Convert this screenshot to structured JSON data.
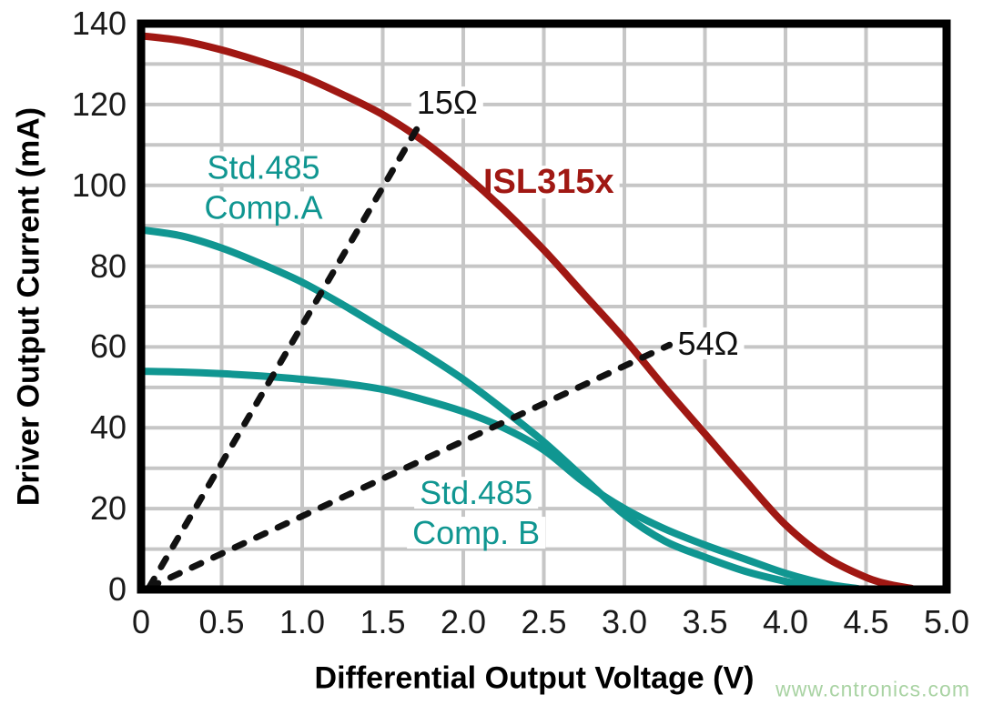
{
  "watermark": {
    "text": "www.cntronics.com",
    "color": "#a9d3a3"
  },
  "chart_data": {
    "type": "line",
    "title": "",
    "xlabel": "Differential Output Voltage (V)",
    "ylabel": "Driver Output Current (mA)",
    "xlim": [
      0,
      5.0
    ],
    "ylim": [
      0,
      140
    ],
    "grid": {
      "on": true,
      "x_step": 0.5,
      "y_step": 10,
      "color": "#c6c6c6"
    },
    "legend_position": "none",
    "x_tick_values": [
      0,
      0.5,
      1.0,
      1.5,
      2.0,
      2.5,
      3.0,
      3.5,
      4.0,
      4.5,
      5.0
    ],
    "x_tick_labels": [
      "0",
      "0.5",
      "1.0",
      "1.5",
      "2.0",
      "2.5",
      "3.0",
      "3.5",
      "4.0",
      "4.5",
      "5.0"
    ],
    "y_tick_values": [
      0,
      20,
      40,
      60,
      80,
      100,
      120,
      140
    ],
    "y_tick_labels": [
      "0",
      "20",
      "40",
      "60",
      "80",
      "100",
      "120",
      "140"
    ],
    "series": [
      {
        "id": "isl315x",
        "name": "ISL315x",
        "color": "#A01813",
        "style": "solid",
        "width": 8,
        "points": [
          [
            0,
            137
          ],
          [
            0.25,
            135.8
          ],
          [
            0.5,
            133.5
          ],
          [
            0.75,
            130.5
          ],
          [
            1.0,
            127
          ],
          [
            1.25,
            122.5
          ],
          [
            1.5,
            117.5
          ],
          [
            1.75,
            111
          ],
          [
            2.0,
            103
          ],
          [
            2.25,
            94
          ],
          [
            2.5,
            84
          ],
          [
            2.75,
            73
          ],
          [
            3.0,
            62
          ],
          [
            3.25,
            50
          ],
          [
            3.5,
            38.5
          ],
          [
            3.75,
            27
          ],
          [
            4.0,
            16
          ],
          [
            4.25,
            8
          ],
          [
            4.5,
            3
          ],
          [
            4.65,
            1.2
          ],
          [
            4.78,
            0.3
          ]
        ]
      },
      {
        "id": "std485-comp-a",
        "name": "Std.485 Comp.A",
        "color": "#109691",
        "style": "solid",
        "width": 8,
        "points": [
          [
            0,
            89
          ],
          [
            0.25,
            87.5
          ],
          [
            0.5,
            84.5
          ],
          [
            0.75,
            80.5
          ],
          [
            1.0,
            76
          ],
          [
            1.25,
            70.5
          ],
          [
            1.5,
            64.5
          ],
          [
            1.75,
            58.5
          ],
          [
            2.0,
            52
          ],
          [
            2.25,
            44.5
          ],
          [
            2.5,
            36.5
          ],
          [
            2.75,
            27.5
          ],
          [
            3.0,
            18.5
          ],
          [
            3.25,
            12
          ],
          [
            3.5,
            8
          ],
          [
            3.75,
            4.5
          ],
          [
            4.0,
            2
          ],
          [
            4.15,
            1
          ],
          [
            4.32,
            0.2
          ]
        ]
      },
      {
        "id": "std485-comp-b",
        "name": "Std.485 Comp. B",
        "color": "#109691",
        "style": "solid",
        "width": 8,
        "points": [
          [
            0,
            54
          ],
          [
            0.25,
            53.8
          ],
          [
            0.5,
            53.4
          ],
          [
            0.75,
            52.8
          ],
          [
            1.0,
            52
          ],
          [
            1.25,
            51
          ],
          [
            1.5,
            49.5
          ],
          [
            1.75,
            47
          ],
          [
            2.0,
            44
          ],
          [
            2.25,
            40
          ],
          [
            2.5,
            34.5
          ],
          [
            2.75,
            26.5
          ],
          [
            3.0,
            20
          ],
          [
            3.25,
            15
          ],
          [
            3.5,
            11
          ],
          [
            3.75,
            7.5
          ],
          [
            4.0,
            4
          ],
          [
            4.25,
            1.4
          ],
          [
            4.45,
            0.2
          ]
        ]
      },
      {
        "id": "load-15ohm",
        "name": "15Ω load line",
        "color": "#111111",
        "style": "dashed",
        "width": 7,
        "dash": "11 15",
        "points": [
          [
            0.05,
            0.5
          ],
          [
            1.72,
            114.5
          ]
        ]
      },
      {
        "id": "load-54ohm",
        "name": "54Ω load line",
        "color": "#111111",
        "style": "dashed",
        "width": 7,
        "dash": "11 15",
        "points": [
          [
            0.05,
            0.5
          ],
          [
            3.28,
            60.5
          ]
        ]
      }
    ],
    "annotations": [
      {
        "id": "label-15ohm",
        "lines": [
          "15Ω"
        ],
        "x": 1.9,
        "y": 120.5,
        "color": "#111111",
        "size": 36,
        "bold": false
      },
      {
        "id": "label-isl315x",
        "lines": [
          "ISL315x"
        ],
        "x": 2.53,
        "y": 100.8,
        "color": "#A01813",
        "size": 38,
        "bold": true
      },
      {
        "id": "label-comp-a",
        "lines": [
          "Std.485",
          "Comp.A"
        ],
        "x": 0.76,
        "y": 99.5,
        "color": "#109691",
        "size": 36,
        "bold": false
      },
      {
        "id": "label-54ohm",
        "lines": [
          "54Ω"
        ],
        "x": 3.52,
        "y": 60.9,
        "color": "#111111",
        "size": 36,
        "bold": false
      },
      {
        "id": "label-comp-b",
        "lines": [
          "Std.485",
          "Comp. B"
        ],
        "x": 2.08,
        "y": 19.0,
        "color": "#109691",
        "size": 36,
        "bold": false
      }
    ]
  }
}
